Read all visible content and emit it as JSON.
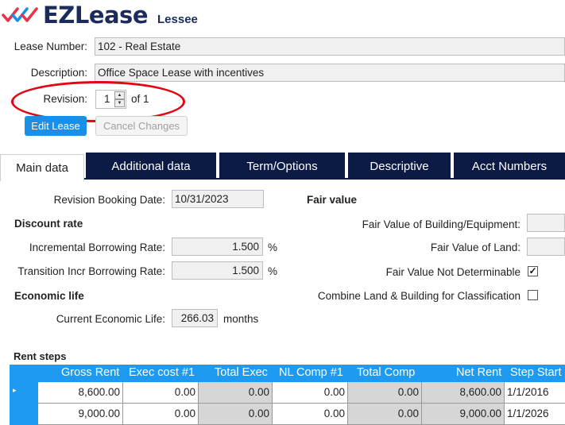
{
  "app": {
    "brand": "EZLease",
    "subtitle": "Lessee"
  },
  "lease": {
    "number_label": "Lease Number:",
    "number_value": "102 - Real Estate",
    "description_label": "Description:",
    "description_value": "Office Space Lease with incentives",
    "revision_label": "Revision:",
    "revision_value": "1",
    "revision_of": "of 1"
  },
  "buttons": {
    "edit": "Edit Lease",
    "cancel": "Cancel Changes"
  },
  "tabs": [
    {
      "label": "Main data",
      "active": true
    },
    {
      "label": "Additional data",
      "active": false
    },
    {
      "label": "Term/Options",
      "active": false
    },
    {
      "label": "Descriptive",
      "active": false
    },
    {
      "label": "Acct Numbers",
      "active": false
    }
  ],
  "main": {
    "revision_booking_label": "Revision Booking Date:",
    "revision_booking_value": "10/31/2023",
    "discount_heading": "Discount rate",
    "ibr_label": "Incremental Borrowing Rate:",
    "ibr_value": "1.500",
    "tibr_label": "Transition Incr Borrowing Rate:",
    "tibr_value": "1.500",
    "percent": "%",
    "economic_heading": "Economic life",
    "econ_life_label": "Current Economic Life:",
    "econ_life_value": "266.03",
    "econ_life_unit": "months"
  },
  "fair_value": {
    "heading": "Fair value",
    "building_label": "Fair Value of Building/Equipment:",
    "land_label": "Fair Value of Land:",
    "not_determinable_label": "Fair Value Not Determinable",
    "not_determinable_checked": true,
    "combine_label": "Combine Land & Building for Classification",
    "combine_checked": false,
    "check_mark": "✓"
  },
  "rent_steps": {
    "heading": "Rent steps",
    "columns": [
      "Gross Rent",
      "Exec cost #1",
      "Total Exec",
      "NL Comp #1",
      "Total Comp",
      "Net Rent",
      "Step Start"
    ],
    "rows": [
      [
        "8,600.00",
        "0.00",
        "0.00",
        "0.00",
        "0.00",
        "8,600.00",
        "1/1/2016"
      ],
      [
        "9,000.00",
        "0.00",
        "0.00",
        "0.00",
        "0.00",
        "9,000.00",
        "1/1/2026"
      ]
    ],
    "row_marker": "▸"
  },
  "colors": {
    "navy": "#0c1b46",
    "accent_blue": "#1e9bf0",
    "highlight_red": "#e30613"
  }
}
